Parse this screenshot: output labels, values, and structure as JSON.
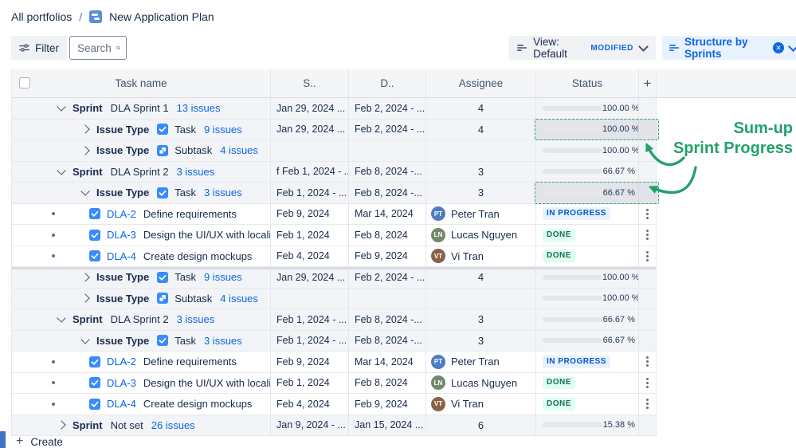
{
  "breadcrumb": {
    "root": "All portfolios",
    "separator": "/",
    "current": "New Application Plan"
  },
  "toolbar": {
    "filter_label": "Filter",
    "search_placeholder": "Search",
    "view_label": "View: Default",
    "view_badge": "MODIFIED",
    "structure_label": "Structure by Sprints"
  },
  "icons": {
    "plan": "blue-plan-square",
    "filter": "filter-lines-with-knobs",
    "search": "magnifier",
    "view": "list-lines",
    "structure": "list-lines",
    "close": "circle-x",
    "chevron_down": "chevron-down",
    "chevron_right": "chevron-right",
    "task": "blue-square-white-check",
    "subtask": "blue-square-white-subtask",
    "row_menu": "vertical-dots",
    "add_column": "plus",
    "create": "plus"
  },
  "table": {
    "columns": [
      "Task name",
      "S..",
      "D..",
      "Assignee",
      "Status"
    ],
    "add_column_label": "+",
    "rows": [
      {
        "type": "sprint",
        "chevron": "down",
        "prefix": "Sprint",
        "name": "DLA Sprint 1",
        "issues": "13 issues",
        "start": "Jan 29, 2024 ...",
        "due": "Feb 2, 2024 - ...",
        "assignee_count": "4",
        "status": {
          "kind": "progress",
          "pct": 100,
          "label": "100.00 %",
          "color": "green"
        }
      },
      {
        "type": "issue_type",
        "chevron": "right",
        "prefix": "Issue Type",
        "icon": "task",
        "name": "Task",
        "issues": "9 issues",
        "start": "Jan 29, 2024 ...",
        "due": "Feb 2, 2024 - ...",
        "assignee_count": "4",
        "status": {
          "kind": "progress",
          "pct": 100,
          "label": "100.00 %",
          "color": "green"
        },
        "highlight": true
      },
      {
        "type": "issue_type",
        "chevron": "right",
        "prefix": "Issue Type",
        "icon": "subtask",
        "name": "Subtask",
        "issues": "4 issues",
        "start": "",
        "due": "",
        "assignee_count": "",
        "status": {
          "kind": "progress",
          "pct": 100,
          "label": "100.00 %",
          "color": "green"
        }
      },
      {
        "type": "sprint",
        "chevron": "down",
        "prefix": "Sprint",
        "name": "DLA Sprint 2",
        "issues": "3 issues",
        "start": "f Feb 1, 2024 - ...",
        "due": "Feb 8, 2024 -...",
        "assignee_count": "3",
        "status": {
          "kind": "progress",
          "pct": 66.67,
          "label": "66.67 %",
          "color": "slate"
        }
      },
      {
        "type": "issue_type",
        "chevron": "down",
        "prefix": "Issue Type",
        "icon": "task",
        "name": "Task",
        "issues": "3 issues",
        "start": "Feb 1, 2024 - ...",
        "due": "Feb 8, 2024 -...",
        "assignee_count": "3",
        "status": {
          "kind": "progress",
          "pct": 66.67,
          "label": "66.67 %",
          "color": "slate"
        },
        "highlight": true
      },
      {
        "type": "task",
        "icon": "task",
        "key": "DLA-2",
        "title": "Define requirements",
        "start": "Feb 9, 2024",
        "due": "Mar 14, 2024",
        "assignee_name": "Peter Tran",
        "assignee_initials": "PT",
        "avatar_color": "#4E7BC4",
        "status": {
          "kind": "badge",
          "label": "IN PROGRESS",
          "style": "in_progress"
        },
        "menu": true
      },
      {
        "type": "task",
        "icon": "task",
        "key": "DLA-3",
        "title": "Design the UI/UX with localiz...",
        "start": "Feb 1, 2024",
        "due": "Feb 8, 2024",
        "assignee_name": "Lucas Nguyen",
        "assignee_initials": "LN",
        "avatar_color": "#74876B",
        "status": {
          "kind": "badge",
          "label": "DONE",
          "style": "done"
        },
        "menu": true
      },
      {
        "type": "task",
        "icon": "task",
        "key": "DLA-4",
        "title": "Create design mockups",
        "start": "Feb 4, 2024",
        "due": "Feb 9, 2024",
        "assignee_name": "Vi Tran",
        "assignee_initials": "VT",
        "avatar_color": "#8A6246",
        "status": {
          "kind": "badge",
          "label": "DONE",
          "style": "done"
        },
        "menu": true
      },
      {
        "type": "issue_type",
        "chevron": "right",
        "prefix": "Issue Type",
        "icon": "task",
        "name": "Task",
        "issues": "9 issues",
        "start": "Jan 29, 2024 ...",
        "due": "Feb 2, 2024 - ...",
        "assignee_count": "4",
        "status": {
          "kind": "progress",
          "pct": 100,
          "label": "100.00 %",
          "color": "green"
        },
        "section_break": true
      },
      {
        "type": "issue_type",
        "chevron": "right",
        "prefix": "Issue Type",
        "icon": "subtask",
        "name": "Subtask",
        "issues": "4 issues",
        "start": "",
        "due": "",
        "assignee_count": "",
        "status": {
          "kind": "progress",
          "pct": 100,
          "label": "100.00 %",
          "color": "green"
        }
      },
      {
        "type": "sprint",
        "chevron": "down",
        "prefix": "Sprint",
        "name": "DLA Sprint 2",
        "issues": "3 issues",
        "start": "Feb 1, 2024 - ...",
        "due": "Feb 8, 2024 -...",
        "assignee_count": "3",
        "status": {
          "kind": "progress",
          "pct": 66.67,
          "label": "66.67 %",
          "color": "slate"
        }
      },
      {
        "type": "issue_type",
        "chevron": "down",
        "prefix": "Issue Type",
        "icon": "task",
        "name": "Task",
        "issues": "3 issues",
        "start": "Feb 1, 2024 - ...",
        "due": "Feb 8, 2024 -...",
        "assignee_count": "3",
        "status": {
          "kind": "progress",
          "pct": 66.67,
          "label": "66.67 %",
          "color": "slate"
        }
      },
      {
        "type": "task",
        "icon": "task",
        "key": "DLA-2",
        "title": "Define requirements",
        "start": "Feb 9, 2024",
        "due": "Mar 14, 2024",
        "assignee_name": "Peter Tran",
        "assignee_initials": "PT",
        "avatar_color": "#4E7BC4",
        "status": {
          "kind": "badge",
          "label": "IN PROGRESS",
          "style": "in_progress"
        },
        "menu": true
      },
      {
        "type": "task",
        "icon": "task",
        "key": "DLA-3",
        "title": "Design the UI/UX with localiz...",
        "start": "Feb 1, 2024",
        "due": "Feb 8, 2024",
        "assignee_name": "Lucas Nguyen",
        "assignee_initials": "LN",
        "avatar_color": "#74876B",
        "status": {
          "kind": "badge",
          "label": "DONE",
          "style": "done"
        },
        "menu": true
      },
      {
        "type": "task",
        "icon": "task",
        "key": "DLA-4",
        "title": "Create design mockups",
        "start": "Feb 4, 2024",
        "due": "Feb 9, 2024",
        "assignee_name": "Vi Tran",
        "assignee_initials": "VT",
        "avatar_color": "#8A6246",
        "status": {
          "kind": "badge",
          "label": "DONE",
          "style": "done"
        },
        "menu": true
      },
      {
        "type": "sprint",
        "chevron": "right",
        "prefix": "Sprint",
        "name": "Not set",
        "issues": "26 issues",
        "start": "Jan 9, 2024 - ...",
        "due": "Jan 15, 2024 ...",
        "assignee_count": "6",
        "status": {
          "kind": "progress",
          "pct": 15.38,
          "label": "15.38 %",
          "color": "slate"
        }
      }
    ]
  },
  "annotation": {
    "line1": "Sum-up",
    "line2": "Sprint Progress"
  },
  "footer": {
    "create_label": "Create"
  },
  "colors": {
    "accent_blue": "#0C66E4",
    "issue_icon_blue": "#388BFF",
    "annotation_green": "#24A06B",
    "progress_green": "#1F845A",
    "progress_slate": "#44546F",
    "badge_in_progress_bg": "#E9F2FF",
    "badge_in_progress_text": "#0055CC",
    "badge_done_bg": "#DCFFF1",
    "badge_done_text": "#216E4E",
    "group_row_bg": "#F3F4F7",
    "highlight_dash": "#2EA26B"
  }
}
